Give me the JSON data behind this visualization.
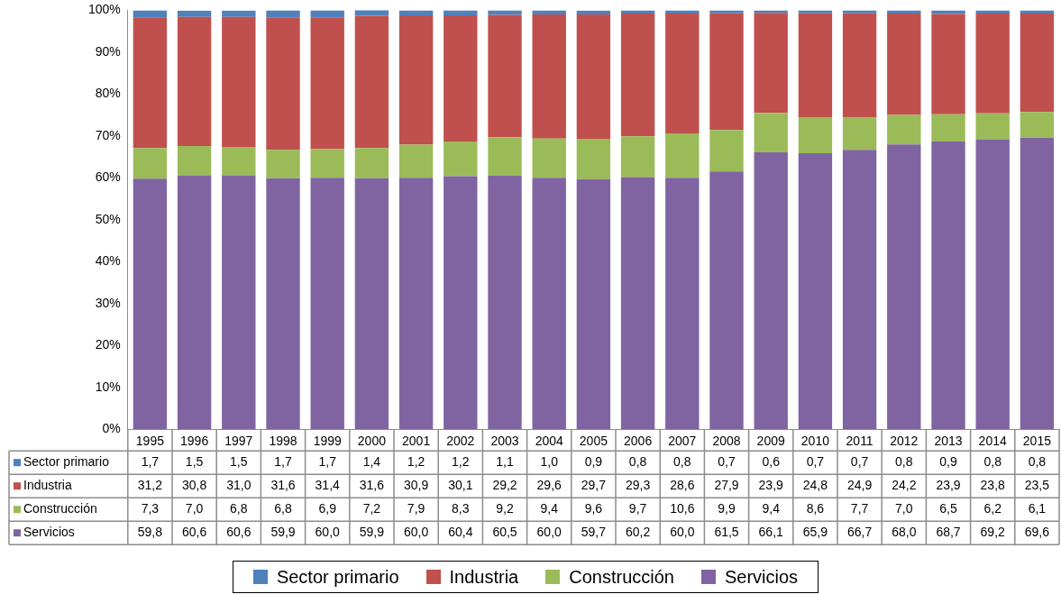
{
  "chart_data": {
    "type": "bar",
    "stacked": true,
    "categories": [
      "1995",
      "1996",
      "1997",
      "1998",
      "1999",
      "2000",
      "2001",
      "2002",
      "2003",
      "2004",
      "2005",
      "2006",
      "2007",
      "2008",
      "2009",
      "2010",
      "2011",
      "2012",
      "2013",
      "2014",
      "2015"
    ],
    "series": [
      {
        "name": "Servicios",
        "color": "#8064a2",
        "values": [
          59.8,
          60.6,
          60.6,
          59.9,
          60.0,
          59.9,
          60.0,
          60.4,
          60.5,
          60.0,
          59.7,
          60.2,
          60.0,
          61.5,
          66.1,
          65.9,
          66.7,
          68.0,
          68.7,
          69.2,
          69.6
        ],
        "value_labels": [
          "59,8",
          "60,6",
          "60,6",
          "59,9",
          "60,0",
          "59,9",
          "60,0",
          "60,4",
          "60,5",
          "60,0",
          "59,7",
          "60,2",
          "60,0",
          "61,5",
          "66,1",
          "65,9",
          "66,7",
          "68,0",
          "68,7",
          "69,2",
          "69,6"
        ]
      },
      {
        "name": "Construcción",
        "color": "#9bbb59",
        "values": [
          7.3,
          7.0,
          6.8,
          6.8,
          6.9,
          7.2,
          7.9,
          8.3,
          9.2,
          9.4,
          9.6,
          9.7,
          10.6,
          9.9,
          9.4,
          8.6,
          7.7,
          7.0,
          6.5,
          6.2,
          6.1
        ],
        "value_labels": [
          "7,3",
          "7,0",
          "6,8",
          "6,8",
          "6,9",
          "7,2",
          "7,9",
          "8,3",
          "9,2",
          "9,4",
          "9,6",
          "9,7",
          "10,6",
          "9,9",
          "9,4",
          "8,6",
          "7,7",
          "7,0",
          "6,5",
          "6,2",
          "6,1"
        ]
      },
      {
        "name": "Industria",
        "color": "#c0504d",
        "values": [
          31.2,
          30.8,
          31.0,
          31.6,
          31.4,
          31.6,
          30.9,
          30.1,
          29.2,
          29.6,
          29.7,
          29.3,
          28.6,
          27.9,
          23.9,
          24.8,
          24.9,
          24.2,
          23.9,
          23.8,
          23.5
        ],
        "value_labels": [
          "31,2",
          "30,8",
          "31,0",
          "31,6",
          "31,4",
          "31,6",
          "30,9",
          "30,1",
          "29,2",
          "29,6",
          "29,7",
          "29,3",
          "28,6",
          "27,9",
          "23,9",
          "24,8",
          "24,9",
          "24,2",
          "23,9",
          "23,8",
          "23,5"
        ]
      },
      {
        "name": "Sector primario",
        "color": "#4f81bd",
        "values": [
          1.7,
          1.5,
          1.5,
          1.7,
          1.7,
          1.4,
          1.2,
          1.2,
          1.1,
          1.0,
          0.9,
          0.8,
          0.8,
          0.7,
          0.6,
          0.7,
          0.7,
          0.8,
          0.9,
          0.8,
          0.8
        ],
        "value_labels": [
          "1,7",
          "1,5",
          "1,5",
          "1,7",
          "1,7",
          "1,4",
          "1,2",
          "1,2",
          "1,1",
          "1,0",
          "0,9",
          "0,8",
          "0,8",
          "0,7",
          "0,6",
          "0,7",
          "0,7",
          "0,8",
          "0,9",
          "0,8",
          "0,8"
        ]
      }
    ],
    "ylim": [
      0,
      100
    ],
    "yticks": [
      {
        "value": 0,
        "label": "0%"
      },
      {
        "value": 10,
        "label": "10%"
      },
      {
        "value": 20,
        "label": "20%"
      },
      {
        "value": 30,
        "label": "30%"
      },
      {
        "value": 40,
        "label": "40%"
      },
      {
        "value": 50,
        "label": "50%"
      },
      {
        "value": 60,
        "label": "60%"
      },
      {
        "value": 70,
        "label": "70%"
      },
      {
        "value": 80,
        "label": "80%"
      },
      {
        "value": 90,
        "label": "90%"
      },
      {
        "value": 100,
        "label": "100%"
      }
    ],
    "legend": "bottom"
  }
}
